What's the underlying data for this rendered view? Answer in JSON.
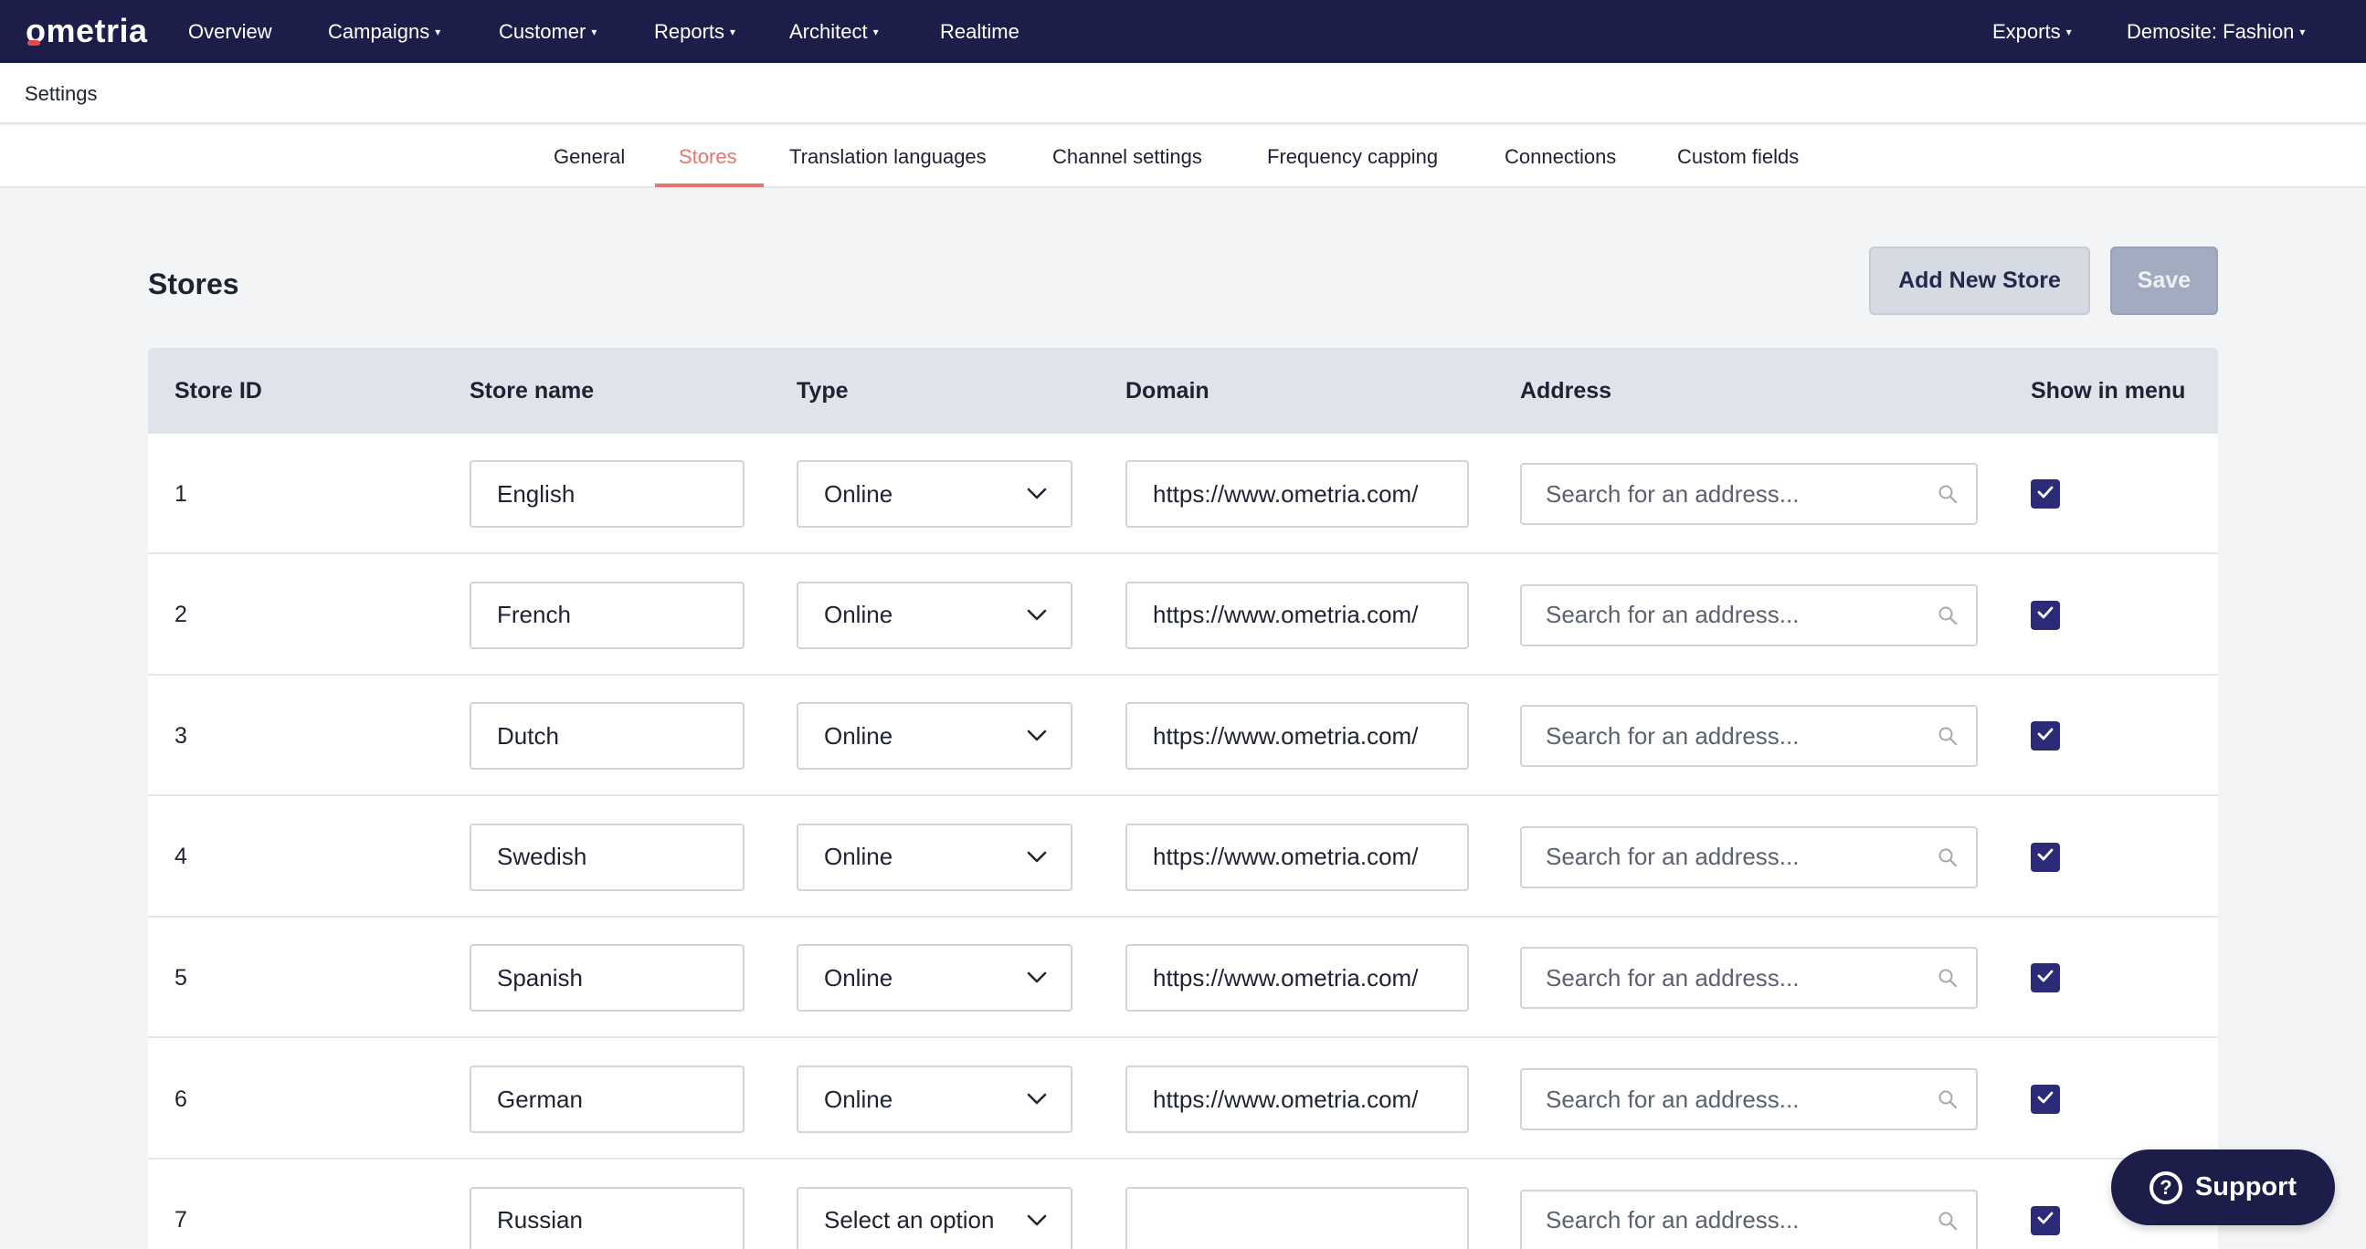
{
  "brand": {
    "logo_text": "ometria",
    "nav_bg": "#1d1d4a",
    "accent": "#e5766f",
    "checkbox_color": "#2b2b78"
  },
  "nav": {
    "overview": "Overview",
    "campaigns": "Campaigns",
    "customer": "Customer",
    "reports": "Reports",
    "architect": "Architect",
    "realtime": "Realtime",
    "exports": "Exports",
    "account": "Demosite: Fashion"
  },
  "header": {
    "title": "Settings"
  },
  "tabs": [
    {
      "label": "General"
    },
    {
      "label": "Stores",
      "active": true
    },
    {
      "label": "Translation languages"
    },
    {
      "label": "Channel settings"
    },
    {
      "label": "Frequency capping"
    },
    {
      "label": "Connections"
    },
    {
      "label": "Custom fields"
    }
  ],
  "page": {
    "title": "Stores",
    "add_button": "Add New Store",
    "save_button": "Save"
  },
  "table": {
    "columns": [
      "Store ID",
      "Store name",
      "Type",
      "Domain",
      "Address",
      "Show in menu"
    ],
    "address_placeholder": "Search for an address...",
    "rows": [
      {
        "id": "1",
        "name": "English",
        "type": "Online",
        "domain": "https://www.ometria.com/",
        "show_in_menu": true
      },
      {
        "id": "2",
        "name": "French",
        "type": "Online",
        "domain": "https://www.ometria.com/",
        "show_in_menu": true
      },
      {
        "id": "3",
        "name": "Dutch",
        "type": "Online",
        "domain": "https://www.ometria.com/",
        "show_in_menu": true
      },
      {
        "id": "4",
        "name": "Swedish",
        "type": "Online",
        "domain": "https://www.ometria.com/",
        "show_in_menu": true
      },
      {
        "id": "5",
        "name": "Spanish",
        "type": "Online",
        "domain": "https://www.ometria.com/",
        "show_in_menu": true
      },
      {
        "id": "6",
        "name": "German",
        "type": "Online",
        "domain": "https://www.ometria.com/",
        "show_in_menu": true
      },
      {
        "id": "7",
        "name": "Russian",
        "type": "Select an option",
        "domain": "",
        "show_in_menu": true
      }
    ]
  },
  "support": {
    "label": "Support",
    "icon": "question-circle-icon"
  }
}
